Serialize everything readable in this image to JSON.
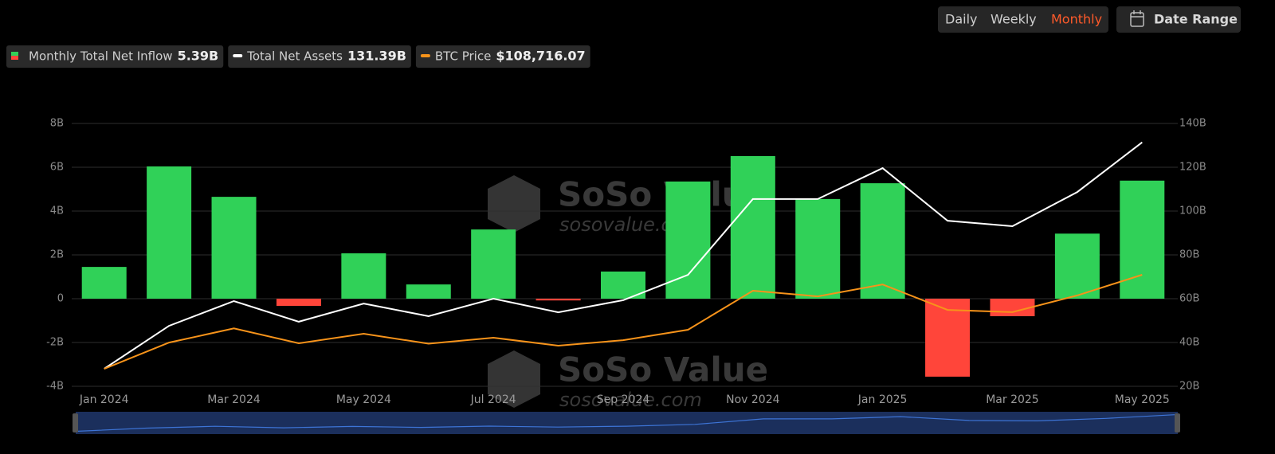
{
  "controls": {
    "periods": [
      "Daily",
      "Weekly",
      "Monthly"
    ],
    "active": "Monthly",
    "date_range": "Date Range"
  },
  "watermark": {
    "brand": "SoSo Value",
    "site": "sosovalue.com"
  },
  "chart_data": {
    "type": "combo",
    "categories": [
      "Jan 2024",
      null,
      "Mar 2024",
      null,
      "May 2024",
      null,
      "Jul 2024",
      null,
      "Sep 2024",
      null,
      "Nov 2024",
      null,
      "Jan 2025",
      null,
      "Mar 2025",
      null,
      "May 2025"
    ],
    "series": [
      {
        "name": "Monthly Total Net Inflow",
        "type": "bar",
        "color": "#30d158",
        "negative_color": "#ff453a",
        "value_label": "5.39B",
        "values": [
          1.45,
          6.04,
          4.65,
          -0.33,
          2.07,
          0.65,
          3.16,
          -0.08,
          1.24,
          5.35,
          6.51,
          4.55,
          5.27,
          -3.56,
          -0.8,
          2.97,
          5.39
        ]
      },
      {
        "name": "Total Net Assets",
        "type": "line",
        "axis": "y2",
        "color": "#ffffff",
        "value_label": "131.39B",
        "values": [
          28,
          47.6,
          58.9,
          49.5,
          57.8,
          52,
          60,
          53.8,
          59.3,
          70.9,
          105.5,
          105.5,
          119.6,
          95.6,
          93.1,
          108.7,
          131.39
        ]
      },
      {
        "name": "BTC Price",
        "type": "line",
        "axis": "y3",
        "color": "#f7931a",
        "value_label": "$108,716.07",
        "values": [
          42500,
          61000,
          71000,
          60500,
          67200,
          60200,
          64400,
          58800,
          62700,
          70000,
          97500,
          93500,
          101900,
          84000,
          82400,
          94200,
          108716.07
        ]
      }
    ],
    "ylim": [
      -4,
      8
    ],
    "yticks": [
      {
        "value": -4,
        "label": "-4B"
      },
      {
        "value": -2,
        "label": "-2B"
      },
      0,
      {
        "value": 2,
        "label": "2B"
      },
      {
        "value": 4,
        "label": "4B"
      },
      {
        "value": 6,
        "label": "6B"
      },
      {
        "value": 8,
        "label": "8B"
      }
    ],
    "y2lim": [
      20,
      140
    ],
    "y2ticks": [
      {
        "value": 20,
        "label": "20B"
      },
      {
        "value": 40,
        "label": "40B"
      },
      {
        "value": 60,
        "label": "60B"
      },
      {
        "value": 80,
        "label": "80B"
      },
      {
        "value": 100,
        "label": "100B"
      },
      {
        "value": 120,
        "label": "120B"
      },
      {
        "value": 140,
        "label": "140B"
      }
    ],
    "y3lim": [
      30200,
      215300
    ],
    "grid": true
  }
}
